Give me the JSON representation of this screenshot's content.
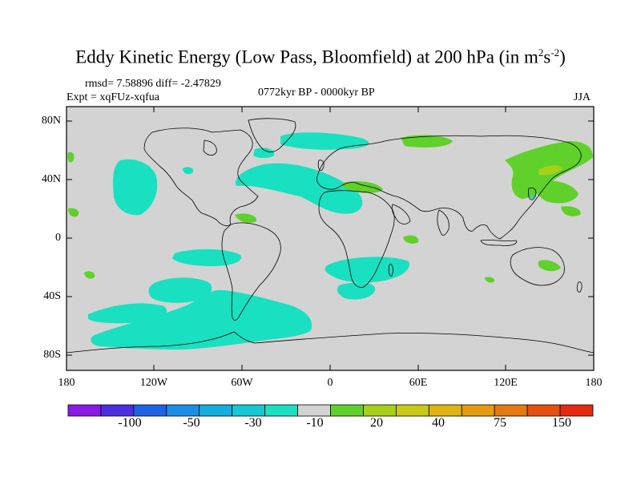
{
  "title": {
    "main": "Eddy Kinetic Energy (Low Pass, Bloomfield) at 200 hPa (in m",
    "sup1": "2",
    "mid": "s",
    "sup2": "-2",
    "end": ")"
  },
  "stats": "rmsd= 7.58896 diff= -2.47829",
  "expt": "Expt = xqFUz-xqfua",
  "period": "0772kyr BP - 0000kyr BP",
  "season": "JJA",
  "lat_labels": [
    "80N",
    "40N",
    "0",
    "40S",
    "80S"
  ],
  "lon_labels": [
    "180",
    "120W",
    "60W",
    "0",
    "60E",
    "120E",
    "180"
  ],
  "colorbar": {
    "labels": [
      "-100",
      "-50",
      "-30",
      "-10",
      "20",
      "40",
      "75",
      "150"
    ],
    "colors": [
      "#8a1ae6",
      "#4b2fe0",
      "#1e63e6",
      "#1a8ee6",
      "#12aee0",
      "#14c8d4",
      "#19e0c0",
      "#d3d3d3",
      "#5fd12a",
      "#a8d018",
      "#c9c916",
      "#e0b410",
      "#e69a10",
      "#e67a10",
      "#e65010",
      "#e62a10"
    ]
  },
  "colors": {
    "land_bg": "#d3d3d3",
    "cyan": "#19e0c0",
    "green": "#5fd12a",
    "yellow_green": "#a8d018"
  }
}
